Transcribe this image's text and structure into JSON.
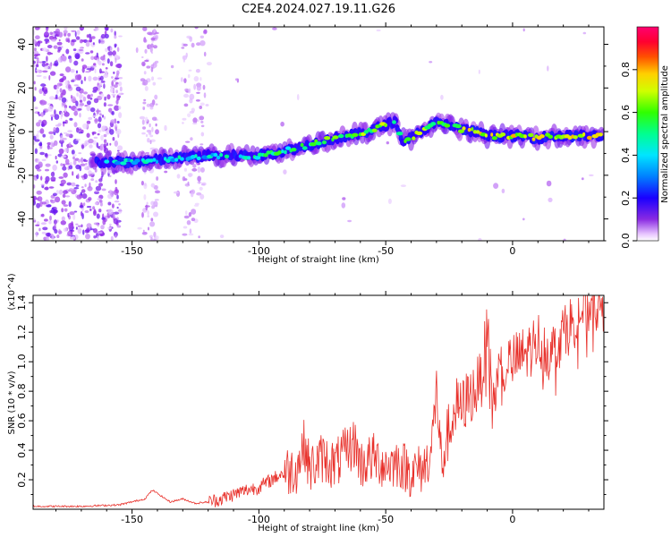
{
  "figure_title": "C2E4.2024.027.19.11.G26",
  "chart_data": [
    {
      "type": "heatmap",
      "title": "",
      "xlabel": "Height of straight line (km)",
      "ylabel": "Frequency (Hz)",
      "xlim": [
        -189,
        36
      ],
      "ylim": [
        -50,
        48
      ],
      "x_ticks": [
        -150,
        -100,
        -50,
        0
      ],
      "y_ticks": [
        -40,
        -20,
        0,
        20,
        40
      ],
      "x_tick_labels": [
        "-150",
        "-100",
        "-50",
        "0"
      ],
      "y_tick_labels": [
        "-40",
        "-20",
        "0",
        "20",
        "40"
      ],
      "colorbar": {
        "label": "Normalized spectral amplitude",
        "range": [
          0,
          1
        ],
        "ticks": [
          0.0,
          0.2,
          0.4,
          0.6,
          0.8
        ],
        "tick_labels": [
          "0.0",
          "0.2",
          "0.4",
          "0.6",
          "0.8"
        ],
        "colormap": "rainbow (white-violet-blue-cyan-green-yellow-orange-red-magenta)"
      },
      "ridge": {
        "x": [
          -160,
          -150,
          -140,
          -130,
          -120,
          -110,
          -100,
          -90,
          -80,
          -70,
          -60,
          -50,
          -46,
          -44,
          -40,
          -35,
          -30,
          -25,
          -20,
          -15,
          -10,
          -5,
          0,
          5,
          10,
          15,
          20,
          25,
          30,
          36
        ],
        "y": [
          -14,
          -14,
          -13,
          -12,
          -11,
          -11,
          -11,
          -9,
          -6,
          -3,
          -1,
          3,
          5,
          -4,
          -3,
          1,
          4,
          3,
          1,
          0,
          -2,
          -2,
          -2,
          -2,
          -3,
          -2,
          -2,
          -2,
          -2,
          -2
        ]
      },
      "background": "scattered violet spectral noise, densest for heights below -150 km"
    },
    {
      "type": "line",
      "title": "",
      "xlabel": "Height of straight line (km)",
      "ylabel": "SNR (10 * v/v)",
      "y_multiplier": "(x10^4)",
      "xlim": [
        -189,
        36
      ],
      "ylim": [
        0,
        1.45
      ],
      "x_ticks": [
        -150,
        -100,
        -50,
        0
      ],
      "y_ticks": [
        0.2,
        0.4,
        0.6,
        0.8,
        1.0,
        1.2,
        1.4
      ],
      "x_tick_labels": [
        "-150",
        "-100",
        "-50",
        "0"
      ],
      "y_tick_labels": [
        "0.2",
        "0.4",
        "0.6",
        "0.8",
        "1.0",
        "1.2",
        "1.4"
      ],
      "series": [
        {
          "color": "#e8302a",
          "x": [
            -189,
            -170,
            -155,
            -150,
            -145,
            -142,
            -135,
            -130,
            -125,
            -120,
            -115,
            -110,
            -105,
            -100,
            -95,
            -90,
            -85,
            -82,
            -80,
            -75,
            -70,
            -65,
            -62,
            -60,
            -55,
            -50,
            -45,
            -40,
            -35,
            -32,
            -30,
            -28,
            -25,
            -22,
            -20,
            -18,
            -15,
            -12,
            -10,
            -8,
            -5,
            0,
            5,
            10,
            15,
            20,
            25,
            30,
            36
          ],
          "y": [
            0.02,
            0.02,
            0.03,
            0.05,
            0.07,
            0.13,
            0.05,
            0.07,
            0.04,
            0.05,
            0.07,
            0.1,
            0.13,
            0.15,
            0.2,
            0.25,
            0.28,
            0.45,
            0.27,
            0.35,
            0.3,
            0.4,
            0.45,
            0.3,
            0.35,
            0.3,
            0.32,
            0.25,
            0.28,
            0.4,
            0.8,
            0.3,
            0.55,
            0.7,
            0.68,
            0.75,
            0.8,
            0.9,
            1.25,
            0.7,
            0.95,
            1.0,
            1.05,
            1.15,
            1.05,
            1.2,
            1.3,
            1.38,
            1.4
          ]
        }
      ]
    }
  ]
}
